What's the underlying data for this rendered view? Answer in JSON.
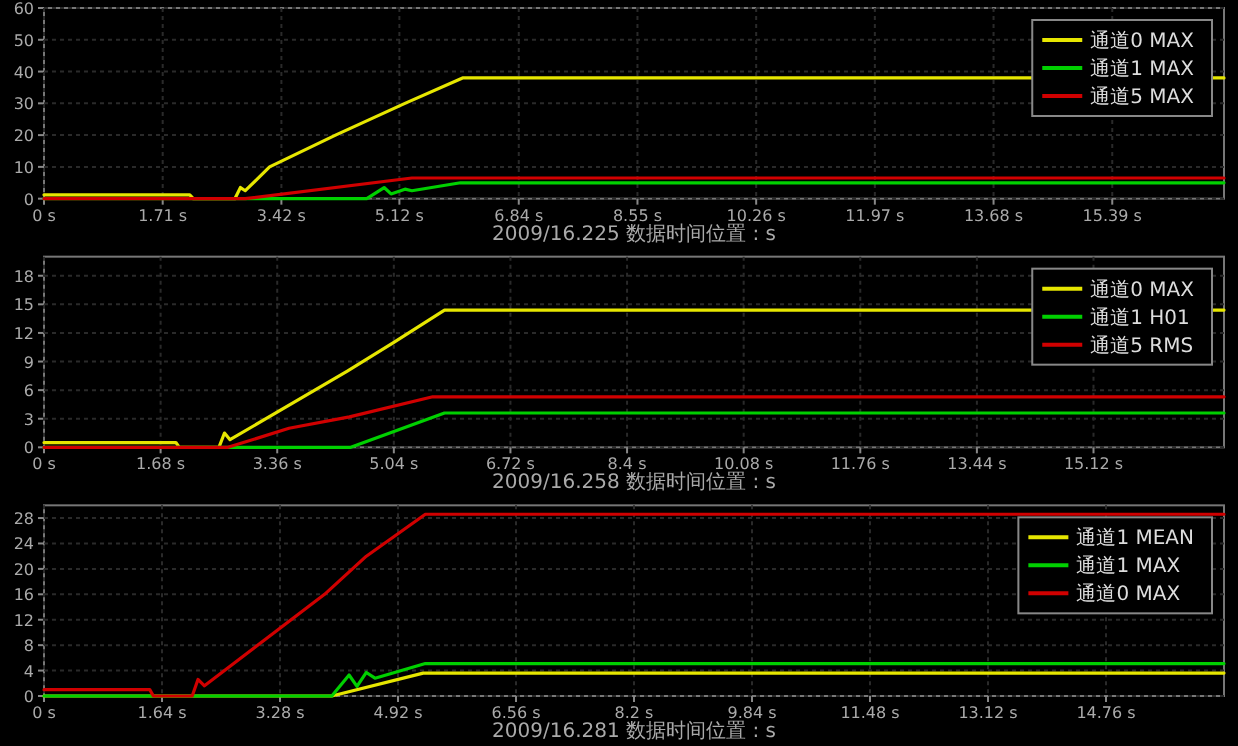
{
  "chart_data": [
    {
      "type": "line",
      "xlabel": "2009/16.225 数据时间位置 : s",
      "xlim": [
        0,
        17
      ],
      "ylim": [
        0,
        60
      ],
      "yticks": [
        0,
        10,
        20,
        30,
        40,
        50,
        60
      ],
      "xticks": [
        {
          "value": 0,
          "label": "0 s"
        },
        {
          "value": 1.71,
          "label": "1.71 s"
        },
        {
          "value": 3.42,
          "label": "3.42 s"
        },
        {
          "value": 5.12,
          "label": "5.12 s"
        },
        {
          "value": 6.84,
          "label": "6.84 s"
        },
        {
          "value": 8.55,
          "label": "8.55 s"
        },
        {
          "value": 10.26,
          "label": "10.26 s"
        },
        {
          "value": 11.97,
          "label": "11.97 s"
        },
        {
          "value": 13.68,
          "label": "13.68 s"
        },
        {
          "value": 15.39,
          "label": "15.39 s"
        }
      ],
      "grid": true,
      "legend": "top right",
      "series": [
        {
          "name": "通道0 MAX",
          "color": "#e6e600",
          "x": [
            0,
            2.1,
            2.15,
            2.75,
            2.83,
            2.9,
            3.25,
            4.2,
            5.2,
            6.03,
            17
          ],
          "values": [
            1.2,
            1.2,
            0,
            0,
            3.5,
            2.5,
            10,
            20,
            30,
            38,
            38
          ]
        },
        {
          "name": "通道1 MAX",
          "color": "#00d000",
          "x": [
            0,
            4.65,
            4.9,
            5.0,
            5.2,
            5.3,
            6.0,
            17
          ],
          "values": [
            0,
            0,
            3.5,
            1.5,
            3,
            2.5,
            5,
            5
          ]
        },
        {
          "name": "通道5 MAX",
          "color": "#d00000",
          "x": [
            0,
            2.9,
            5.3,
            17
          ],
          "values": [
            0,
            0,
            6.5,
            6.5
          ]
        }
      ]
    },
    {
      "type": "line",
      "xlabel": "2009/16.258 数据时间位置 : s",
      "xlim": [
        0,
        17
      ],
      "ylim": [
        0,
        20
      ],
      "yticks": [
        0,
        3,
        6,
        9,
        12,
        15,
        18
      ],
      "xticks": [
        {
          "value": 0,
          "label": "0 s"
        },
        {
          "value": 1.68,
          "label": "1.68 s"
        },
        {
          "value": 3.36,
          "label": "3.36 s"
        },
        {
          "value": 5.04,
          "label": "5.04 s"
        },
        {
          "value": 6.72,
          "label": "6.72 s"
        },
        {
          "value": 8.4,
          "label": "8.4 s"
        },
        {
          "value": 10.08,
          "label": "10.08 s"
        },
        {
          "value": 11.76,
          "label": "11.76 s"
        },
        {
          "value": 13.44,
          "label": "13.44 s"
        },
        {
          "value": 15.12,
          "label": "15.12 s"
        }
      ],
      "grid": true,
      "legend": "top right",
      "series": [
        {
          "name": "通道0 MAX",
          "color": "#e6e600",
          "x": [
            0,
            1.9,
            1.95,
            2.52,
            2.6,
            2.68,
            4.37,
            5.04,
            5.77,
            17
          ],
          "values": [
            0.5,
            0.5,
            0,
            0,
            1.5,
            0.8,
            8,
            11,
            14.4,
            14.4
          ]
        },
        {
          "name": "通道1 H01",
          "color": "#00d000",
          "x": [
            0,
            4.42,
            5.77,
            17
          ],
          "values": [
            0,
            0,
            3.6,
            3.6
          ]
        },
        {
          "name": "通道5 RMS",
          "color": "#d00000",
          "x": [
            0,
            2.65,
            3.53,
            4.4,
            5.6,
            17
          ],
          "values": [
            0,
            0,
            2,
            3.2,
            5.3,
            5.3
          ]
        }
      ]
    },
    {
      "type": "line",
      "xlabel": "2009/16.281 数据时间位置 : s",
      "xlim": [
        0,
        16.4
      ],
      "ylim": [
        0,
        30
      ],
      "yticks": [
        0,
        4,
        8,
        12,
        16,
        20,
        24,
        28
      ],
      "xticks": [
        {
          "value": 0,
          "label": "0 s"
        },
        {
          "value": 1.64,
          "label": "1.64 s"
        },
        {
          "value": 3.28,
          "label": "3.28 s"
        },
        {
          "value": 4.92,
          "label": "4.92 s"
        },
        {
          "value": 6.56,
          "label": "6.56 s"
        },
        {
          "value": 8.2,
          "label": "8.2 s"
        },
        {
          "value": 9.84,
          "label": "9.84 s"
        },
        {
          "value": 11.48,
          "label": "11.48 s"
        },
        {
          "value": 13.12,
          "label": "13.12 s"
        },
        {
          "value": 14.76,
          "label": "14.76 s"
        }
      ],
      "grid": true,
      "legend": "top right",
      "series": [
        {
          "name": "通道1 MEAN",
          "color": "#e6e600",
          "x": [
            0,
            4.0,
            5.27,
            16.4
          ],
          "values": [
            0,
            0,
            3.6,
            3.6
          ]
        },
        {
          "name": "通道1 MAX",
          "color": "#00d000",
          "x": [
            0,
            4.0,
            4.24,
            4.35,
            4.48,
            4.6,
            5.3,
            16.4
          ],
          "values": [
            0,
            0,
            3.3,
            1.5,
            3.7,
            2.8,
            5.1,
            5.1
          ]
        },
        {
          "name": "通道0 MAX",
          "color": "#d00000",
          "x": [
            0,
            1.47,
            1.52,
            2.06,
            2.14,
            2.23,
            3.9,
            4.48,
            5.3,
            16.4
          ],
          "values": [
            1,
            1,
            0,
            0,
            2.6,
            1.6,
            16,
            22,
            28.6,
            28.6
          ]
        }
      ]
    }
  ]
}
